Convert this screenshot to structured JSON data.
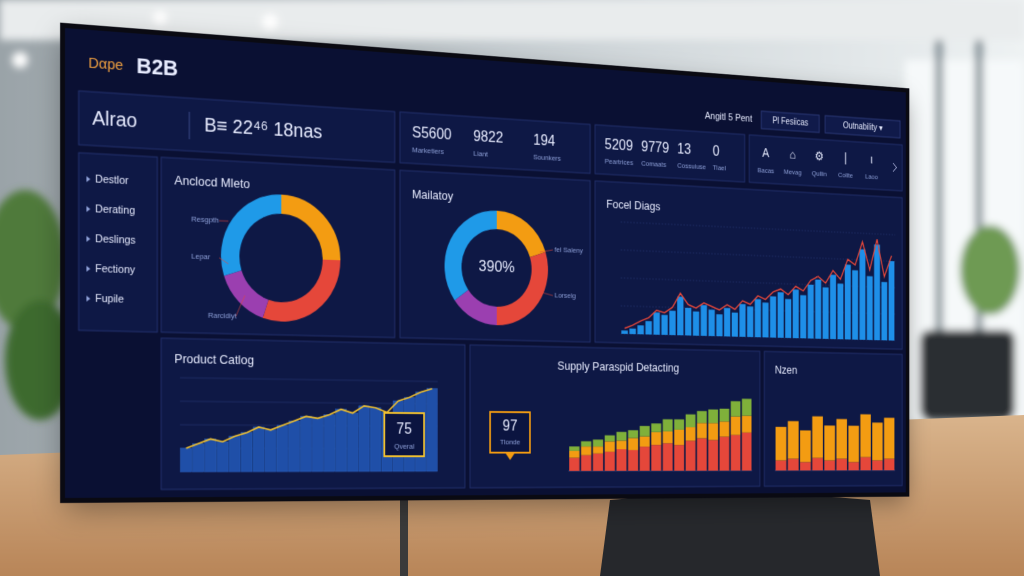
{
  "header": {
    "brand_prefix": "Dαpe",
    "brand": "B2B",
    "user": "Angitl 5 Pent",
    "button": "Pl Fesiicas",
    "dropdown": "Outnability ▾"
  },
  "summary": {
    "title": "Alrao",
    "kpi": "B≡ 22⁴⁶ 18nas"
  },
  "stats_a": [
    {
      "value": "S5600",
      "label": "Marketiers"
    },
    {
      "value": "9822",
      "label": "Liant"
    },
    {
      "value": "194",
      "label": "Sounkers"
    }
  ],
  "stats_b": [
    {
      "value": "5209",
      "label": "Peartrices"
    },
    {
      "value": "9779",
      "label": "Comaats"
    },
    {
      "value": "13",
      "label": "Cossuiuse"
    },
    {
      "value": "0",
      "label": "Tlael"
    }
  ],
  "shortcuts": [
    {
      "icon": "A",
      "label": "Bacas"
    },
    {
      "icon": "⌂",
      "label": "Mevag"
    },
    {
      "icon": "⚙",
      "label": "Qullin"
    },
    {
      "icon": "|",
      "label": "Colite"
    },
    {
      "icon": "ι",
      "label": "Laoo"
    }
  ],
  "sidebar": [
    "Destlor",
    "Derating",
    "Deslings",
    "Fectiony",
    "Fupile"
  ],
  "donut_a": {
    "title": "Anclocd Mleto",
    "labels": [
      "Resgpth",
      "Lepar",
      "Rarcidiyt"
    ],
    "segments": [
      {
        "value": 25,
        "color": "#f39c12"
      },
      {
        "value": 30,
        "color": "#e5473a"
      },
      {
        "value": 15,
        "color": "#9b3fb0"
      },
      {
        "value": 30,
        "color": "#1f9ae8"
      }
    ]
  },
  "donut_b": {
    "title": "Mailatoy",
    "center": "390%",
    "labels": [
      "fel Saleny",
      "Lorselg"
    ],
    "segments": [
      {
        "value": 20,
        "color": "#f39c12"
      },
      {
        "value": 30,
        "color": "#e5473a"
      },
      {
        "value": 15,
        "color": "#9b3fb0"
      },
      {
        "value": 35,
        "color": "#1f9ae8"
      }
    ]
  },
  "focal": {
    "title": "Focel Diags",
    "ylim": [
      0,
      100
    ],
    "bar_color": "#1e8fe8",
    "line_color": "#e5473a",
    "bars": [
      3,
      5,
      8,
      12,
      20,
      18,
      22,
      35,
      25,
      22,
      28,
      24,
      20,
      26,
      22,
      30,
      28,
      35,
      32,
      38,
      42,
      36,
      45,
      40,
      50,
      55,
      48,
      60,
      52,
      70,
      65,
      85,
      60,
      90,
      55,
      75
    ],
    "line": [
      5,
      8,
      12,
      15,
      22,
      20,
      25,
      38,
      28,
      25,
      30,
      27,
      24,
      29,
      25,
      33,
      30,
      38,
      35,
      42,
      45,
      40,
      48,
      44,
      54,
      58,
      52,
      64,
      56,
      75,
      70,
      92,
      66,
      95,
      60,
      80
    ]
  },
  "product": {
    "title": "Product Catlog",
    "ylim": [
      0,
      100
    ],
    "bar_color": "#1f4fa8",
    "line_color": "#f2c12e",
    "values": [
      25,
      30,
      35,
      32,
      38,
      42,
      48,
      45,
      50,
      55,
      60,
      58,
      62,
      68,
      64,
      72,
      70,
      65,
      78,
      82,
      88,
      92
    ],
    "callout": {
      "value": "75",
      "label": "Qveral"
    }
  },
  "supply": {
    "title": "Supply Paraspid Detacting",
    "ylim": [
      0,
      100
    ],
    "series": [
      {
        "color": "#e5473a",
        "values": [
          15,
          18,
          20,
          22,
          25,
          24,
          28,
          30,
          32,
          30,
          35,
          38,
          36,
          40,
          42,
          45
        ]
      },
      {
        "color": "#f39c12",
        "values": [
          8,
          10,
          8,
          12,
          10,
          14,
          12,
          15,
          14,
          18,
          16,
          18,
          20,
          18,
          22,
          20
        ]
      },
      {
        "color": "#7fb03a",
        "values": [
          5,
          6,
          8,
          7,
          10,
          9,
          12,
          10,
          14,
          12,
          15,
          14,
          16,
          15,
          18,
          20
        ]
      }
    ],
    "callout": {
      "value": "97",
      "label": "Tlonde"
    }
  },
  "nzen": {
    "title": "Nzen",
    "ylim": [
      0,
      100
    ],
    "series": [
      {
        "color": "#e5473a",
        "values": [
          12,
          14,
          10,
          15,
          12,
          14,
          10,
          16,
          12,
          14
        ]
      },
      {
        "color": "#f39c12",
        "values": [
          40,
          45,
          38,
          50,
          42,
          48,
          44,
          52,
          46,
          50
        ]
      }
    ]
  }
}
